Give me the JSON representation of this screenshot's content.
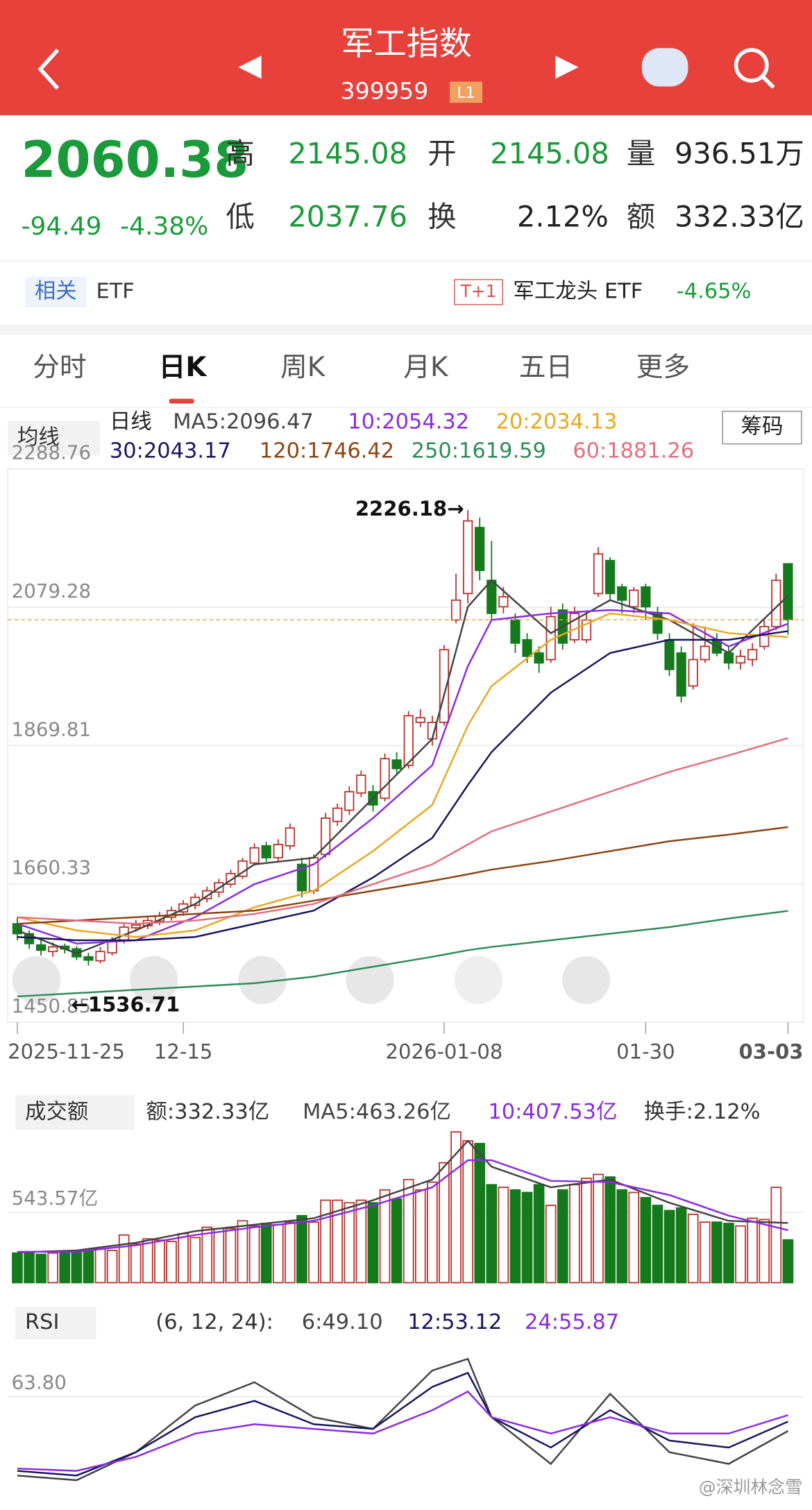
{
  "header": {
    "title": "军工指数",
    "code": "399959",
    "level": "L1"
  },
  "quote": {
    "price": "2060.38",
    "change": "-94.49",
    "change_pct": "-4.38%",
    "high_label": "高",
    "high": "2145.08",
    "open_label": "开",
    "open": "2145.08",
    "volume_label": "量",
    "volume": "936.51万",
    "low_label": "低",
    "low": "2037.76",
    "turnover_label": "换",
    "turnover": "2.12%",
    "amount_label": "额",
    "amount": "332.33亿"
  },
  "related": {
    "label": "相关",
    "etf": "ETF",
    "badge": "T+1",
    "fund": "军工龙头 ETF",
    "fund_change": "-4.65%"
  },
  "tabs": [
    "分时",
    "日K",
    "周K",
    "月K",
    "五日",
    "更多"
  ],
  "watermark": "@深圳林念雪",
  "chart_data": [
    {
      "type": "candlestick",
      "selector": "均线",
      "legend_title": "日线",
      "chip_button": "筹码",
      "high_note": "2226.18→",
      "low_note": "←1536.71",
      "up_color": "#b8322c",
      "down_color": "#157a1c",
      "ylim": [
        1450.85,
        2288.76
      ],
      "yticks": [
        2288.76,
        2079.28,
        1869.81,
        1660.33,
        1450.85
      ],
      "xticks": [
        {
          "value": 0,
          "label": "2025-11-25"
        },
        {
          "value": 14,
          "label": "12-15"
        },
        {
          "value": 36,
          "label": "2026-01-08"
        },
        {
          "value": 53,
          "label": "01-30"
        },
        {
          "value": 65,
          "label": "03-03"
        }
      ],
      "candles": [
        [
          1600,
          1610,
          1575,
          1585
        ],
        [
          1585,
          1590,
          1562,
          1570
        ],
        [
          1568,
          1575,
          1552,
          1560
        ],
        [
          1558,
          1572,
          1550,
          1565
        ],
        [
          1566,
          1570,
          1555,
          1562
        ],
        [
          1562,
          1566,
          1545,
          1550
        ],
        [
          1550,
          1556,
          1536.71,
          1545
        ],
        [
          1544,
          1565,
          1540,
          1558
        ],
        [
          1556,
          1580,
          1552,
          1575
        ],
        [
          1575,
          1600,
          1570,
          1595
        ],
        [
          1594,
          1606,
          1588,
          1598
        ],
        [
          1597,
          1610,
          1592,
          1605
        ],
        [
          1604,
          1618,
          1598,
          1612
        ],
        [
          1610,
          1626,
          1605,
          1620
        ],
        [
          1618,
          1636,
          1612,
          1630
        ],
        [
          1628,
          1646,
          1622,
          1640
        ],
        [
          1638,
          1656,
          1632,
          1650
        ],
        [
          1648,
          1668,
          1640,
          1662
        ],
        [
          1660,
          1682,
          1655,
          1676
        ],
        [
          1672,
          1700,
          1668,
          1695
        ],
        [
          1692,
          1722,
          1688,
          1715
        ],
        [
          1718,
          1724,
          1694,
          1700
        ],
        [
          1700,
          1728,
          1695,
          1720
        ],
        [
          1718,
          1752,
          1712,
          1745
        ],
        [
          1690,
          1700,
          1640,
          1650
        ],
        [
          1650,
          1705,
          1645,
          1700
        ],
        [
          1705,
          1768,
          1700,
          1760
        ],
        [
          1755,
          1782,
          1748,
          1775
        ],
        [
          1772,
          1808,
          1765,
          1800
        ],
        [
          1798,
          1832,
          1792,
          1825
        ],
        [
          1800,
          1810,
          1770,
          1780
        ],
        [
          1790,
          1858,
          1785,
          1850
        ],
        [
          1848,
          1860,
          1828,
          1835
        ],
        [
          1840,
          1922,
          1835,
          1915
        ],
        [
          1905,
          1925,
          1898,
          1912
        ],
        [
          1880,
          1915,
          1870,
          1905
        ],
        [
          1905,
          2022,
          1900,
          2015
        ],
        [
          2060,
          2130,
          2055,
          2090
        ],
        [
          2100,
          2226.18,
          2085,
          2210
        ],
        [
          2200,
          2215,
          2120,
          2135
        ],
        [
          2120,
          2180,
          2060,
          2070
        ],
        [
          2080,
          2110,
          2070,
          2095
        ],
        [
          2060,
          2070,
          2010,
          2025
        ],
        [
          2030,
          2040,
          1995,
          2005
        ],
        [
          2010,
          2020,
          1980,
          1995
        ],
        [
          2000,
          2080,
          1995,
          2065
        ],
        [
          2075,
          2085,
          2015,
          2025
        ],
        [
          2030,
          2080,
          2025,
          2070
        ],
        [
          2030,
          2070,
          2025,
          2060
        ],
        [
          2100,
          2170,
          2095,
          2160
        ],
        [
          2150,
          2155,
          2090,
          2100
        ],
        [
          2110,
          2115,
          2070,
          2090
        ],
        [
          2080,
          2110,
          2070,
          2105
        ],
        [
          2110,
          2115,
          2060,
          2080
        ],
        [
          2070,
          2080,
          2030,
          2040
        ],
        [
          2030,
          2040,
          1975,
          1985
        ],
        [
          2010,
          2020,
          1935,
          1945
        ],
        [
          1960,
          2055,
          1955,
          2000
        ],
        [
          2000,
          2050,
          1995,
          2020
        ],
        [
          2030,
          2040,
          2005,
          2010
        ],
        [
          2010,
          2020,
          1985,
          1995
        ],
        [
          1995,
          2015,
          1985,
          2005
        ],
        [
          2000,
          2025,
          1990,
          2015
        ],
        [
          2020,
          2060,
          2015,
          2050
        ],
        [
          2050,
          2130,
          2045,
          2120
        ],
        [
          2145.08,
          2145.08,
          2037.76,
          2060.38
        ]
      ],
      "x_index": [
        0,
        5,
        10,
        15,
        20,
        25,
        30,
        35,
        38,
        40,
        45,
        50,
        55,
        60,
        65
      ],
      "series": [
        {
          "name": "MA5:2096.47",
          "color": "#444444",
          "values": [
            1590,
            1555,
            1590,
            1630,
            1690,
            1700,
            1790,
            1880,
            2080,
            2120,
            2040,
            2090,
            2060,
            2010,
            2096.47
          ]
        },
        {
          "name": "10:2054.32",
          "color": "#8a2be2",
          "values": [
            1600,
            1570,
            1575,
            1610,
            1660,
            1690,
            1760,
            1840,
            1990,
            2060,
            2070,
            2075,
            2070,
            2020,
            2054.32
          ]
        },
        {
          "name": "20:2034.13",
          "color": "#e8a820",
          "values": [
            1610,
            1590,
            1580,
            1590,
            1625,
            1650,
            1710,
            1780,
            1900,
            1960,
            2030,
            2070,
            2060,
            2040,
            2034.13
          ]
        },
        {
          "name": "30:2043.17",
          "color": "#16165e",
          "values": [
            1580,
            1575,
            1575,
            1580,
            1600,
            1620,
            1670,
            1730,
            1810,
            1860,
            1950,
            2010,
            2030,
            2030,
            2043.17
          ]
        },
        {
          "name": "120:1746.42",
          "color": "#8b4513",
          "values": [
            1600,
            1605,
            1610,
            1615,
            1620,
            1635,
            1650,
            1665,
            1675,
            1682,
            1695,
            1710,
            1725,
            1735,
            1746.42
          ]
        },
        {
          "name": "250:1619.59",
          "color": "#2e8b57",
          "values": [
            1490,
            1495,
            1500,
            1505,
            1510,
            1520,
            1535,
            1550,
            1560,
            1565,
            1575,
            1585,
            1595,
            1608,
            1619.59
          ]
        },
        {
          "name": "60:1881.26",
          "color": "#e07080",
          "values": [
            1610,
            1605,
            1600,
            1605,
            1615,
            1630,
            1660,
            1690,
            1720,
            1740,
            1770,
            1800,
            1830,
            1855,
            1881.26
          ]
        }
      ]
    },
    {
      "type": "bar",
      "selector": "成交额",
      "amount_label": "额:332.33亿",
      "turnover_label": "换手:2.12%",
      "ylim": [
        0,
        1230
      ],
      "yticks": [
        {
          "value": 543.57,
          "label": "543.57亿"
        }
      ],
      "values": [
        230,
        240,
        220,
        230,
        230,
        240,
        250,
        260,
        250,
        370,
        300,
        340,
        330,
        320,
        380,
        350,
        430,
        420,
        420,
        480,
        440,
        460,
        450,
        470,
        520,
        470,
        640,
        640,
        620,
        640,
        620,
        720,
        650,
        800,
        720,
        780,
        930,
        1170,
        1100,
        1080,
        760,
        740,
        720,
        700,
        760,
        600,
        720,
        760,
        810,
        840,
        820,
        720,
        700,
        660,
        600,
        560,
        580,
        530,
        470,
        470,
        460,
        440,
        500,
        490,
        740,
        332.33
      ],
      "series": [
        {
          "name": "MA5:463.26亿",
          "color": "#444444",
          "values": [
            235,
            250,
            310,
            400,
            450,
            500,
            640,
            800,
            1100,
            900,
            740,
            800,
            620,
            480,
            463.26
          ]
        },
        {
          "name": "10:407.53亿",
          "color": "#8a2be2",
          "values": [
            240,
            240,
            290,
            370,
            430,
            480,
            600,
            740,
            950,
            950,
            790,
            780,
            680,
            520,
            407.53
          ]
        }
      ]
    },
    {
      "type": "line",
      "selector": "RSI",
      "params": "(6, 12, 24):",
      "ylim": [
        20,
        90
      ],
      "yticks": [
        {
          "value": 63.8,
          "label": "63.80"
        }
      ],
      "series": [
        {
          "name": "6:49.10",
          "color": "#444444",
          "values": [
            30,
            28,
            40,
            60,
            70,
            55,
            50,
            75,
            80,
            55,
            35,
            65,
            40,
            35,
            49.1
          ]
        },
        {
          "name": "12:53.12",
          "color": "#16165e",
          "values": [
            32,
            30,
            40,
            55,
            62,
            52,
            50,
            68,
            74,
            55,
            42,
            58,
            45,
            42,
            53.12
          ]
        },
        {
          "name": "24:55.87",
          "color": "#8a2be2",
          "values": [
            33,
            32,
            38,
            48,
            52,
            50,
            48,
            58,
            66,
            55,
            48,
            55,
            48,
            48,
            55.87
          ]
        }
      ]
    }
  ]
}
